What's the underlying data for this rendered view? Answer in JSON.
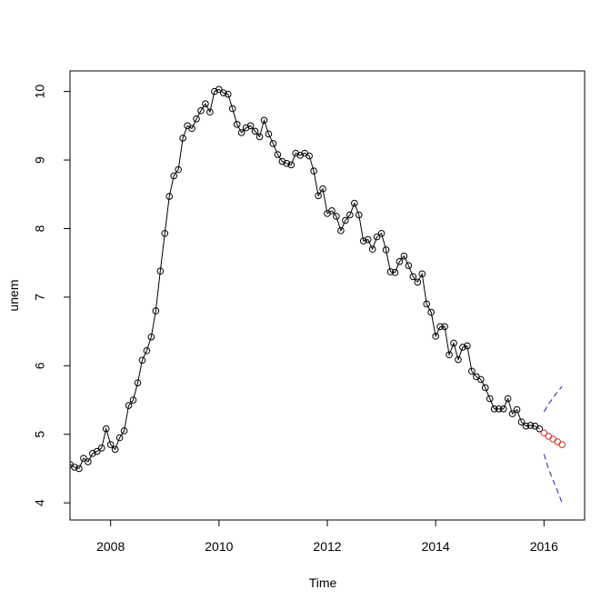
{
  "chart_data": {
    "type": "line",
    "title": "",
    "xlabel": "Time",
    "ylabel": "unem",
    "xlim": [
      2007.25,
      2016.75
    ],
    "ylim": [
      3.75,
      10.3
    ],
    "x_ticks": [
      2008,
      2010,
      2012,
      2014,
      2016
    ],
    "x_tick_labels": [
      "2008",
      "2010",
      "2012",
      "2014",
      "2016"
    ],
    "y_ticks": [
      4,
      5,
      6,
      7,
      8,
      9,
      10
    ],
    "y_tick_labels": [
      "4",
      "5",
      "6",
      "7",
      "8",
      "9",
      "10"
    ],
    "grid": false,
    "legend": "none",
    "series": [
      {
        "role": "observed",
        "color": "#000000",
        "style": "line-with-open-circles",
        "start_year": 2007,
        "start_month": 4,
        "frequency": 12,
        "values": [
          4.56,
          4.52,
          4.5,
          4.65,
          4.6,
          4.72,
          4.75,
          4.8,
          5.08,
          4.85,
          4.78,
          4.95,
          5.05,
          5.42,
          5.5,
          5.75,
          6.08,
          6.22,
          6.42,
          6.8,
          7.38,
          7.93,
          8.47,
          8.77,
          8.86,
          9.32,
          9.5,
          9.46,
          9.6,
          9.72,
          9.82,
          9.7,
          10.0,
          10.03,
          9.98,
          9.96,
          9.75,
          9.52,
          9.4,
          9.47,
          9.5,
          9.42,
          9.34,
          9.58,
          9.38,
          9.24,
          9.08,
          8.98,
          8.95,
          8.93,
          9.1,
          9.07,
          9.1,
          9.06,
          8.84,
          8.48,
          8.58,
          8.22,
          8.26,
          8.18,
          7.97,
          8.12,
          8.2,
          8.37,
          8.2,
          7.82,
          7.84,
          7.7,
          7.88,
          7.93,
          7.69,
          7.37,
          7.36,
          7.52,
          7.6,
          7.46,
          7.3,
          7.22,
          7.34,
          6.9,
          6.78,
          6.43,
          6.57,
          6.57,
          6.16,
          6.33,
          6.09,
          6.27,
          6.29,
          5.92,
          5.84,
          5.8,
          5.68,
          5.52,
          5.37,
          5.37,
          5.37,
          5.52,
          5.3,
          5.36,
          5.18,
          5.12,
          5.13,
          5.12,
          5.08
        ]
      },
      {
        "role": "forecast",
        "color": "#d62728",
        "style": "open-circles",
        "start_year": 2016,
        "start_month": 1,
        "frequency": 12,
        "values": [
          5.02,
          4.97,
          4.93,
          4.89,
          4.85
        ]
      },
      {
        "role": "upper-bound",
        "color": "#1f1fbf",
        "style": "dashed-line",
        "start_year": 2016,
        "start_month": 1,
        "frequency": 12,
        "values": [
          5.33,
          5.44,
          5.53,
          5.62,
          5.7
        ]
      },
      {
        "role": "lower-bound",
        "color": "#1f1fbf",
        "style": "dashed-line",
        "start_year": 2016,
        "start_month": 1,
        "frequency": 12,
        "values": [
          4.71,
          4.5,
          4.33,
          4.17,
          4.0
        ]
      }
    ]
  }
}
